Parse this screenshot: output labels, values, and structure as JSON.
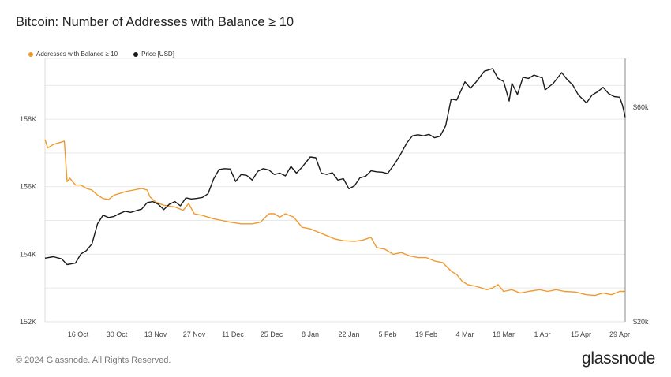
{
  "title": "Bitcoin: Number of Addresses with Balance ≥ 10",
  "footer": "© 2024 Glassnode. All Rights Reserved.",
  "brand": "glassnode",
  "colors": {
    "addresses": "#f09a2e",
    "price": "#1a1a1a",
    "grid": "#e9e9e9"
  },
  "chart_data": {
    "type": "line",
    "title": "Bitcoin: Number of Addresses with Balance ≥ 10",
    "legend_position": "top-left",
    "grid": true,
    "x_ticks": [
      "16 Oct",
      "30 Oct",
      "13 Nov",
      "27 Nov",
      "11 Dec",
      "25 Dec",
      "8 Jan",
      "22 Jan",
      "5 Feb",
      "19 Feb",
      "4 Mar",
      "18 Mar",
      "1 Apr",
      "15 Apr",
      "29 Apr"
    ],
    "x_range": [
      "2023-10-04",
      "2024-05-01"
    ],
    "y_left": {
      "ticks": [
        "152K",
        "154K",
        "156K",
        "158K"
      ],
      "range": [
        152000,
        159800
      ]
    },
    "y_right": {
      "scale": "log",
      "ticks": [
        "$20k",
        "$60k"
      ],
      "range": [
        20000,
        77000
      ]
    },
    "series": [
      {
        "name": "Addresses with Balance ≥ 10",
        "axis": "left",
        "color": "#f09a2e",
        "points": [
          [
            "2023-10-04",
            157400
          ],
          [
            "2023-10-05",
            157150
          ],
          [
            "2023-10-07",
            157250
          ],
          [
            "2023-10-09",
            157300
          ],
          [
            "2023-10-11",
            157350
          ],
          [
            "2023-10-12",
            156150
          ],
          [
            "2023-10-13",
            156250
          ],
          [
            "2023-10-15",
            156050
          ],
          [
            "2023-10-17",
            156050
          ],
          [
            "2023-10-19",
            155950
          ],
          [
            "2023-10-21",
            155900
          ],
          [
            "2023-10-23",
            155750
          ],
          [
            "2023-10-25",
            155650
          ],
          [
            "2023-10-27",
            155620
          ],
          [
            "2023-10-29",
            155750
          ],
          [
            "2023-10-31",
            155800
          ],
          [
            "2023-11-02",
            155850
          ],
          [
            "2023-11-05",
            155900
          ],
          [
            "2023-11-08",
            155950
          ],
          [
            "2023-11-10",
            155900
          ],
          [
            "2023-11-11",
            155700
          ],
          [
            "2023-11-13",
            155550
          ],
          [
            "2023-11-16",
            155450
          ],
          [
            "2023-11-20",
            155400
          ],
          [
            "2023-11-23",
            155300
          ],
          [
            "2023-11-25",
            155500
          ],
          [
            "2023-11-27",
            155200
          ],
          [
            "2023-11-30",
            155150
          ],
          [
            "2023-12-02",
            155100
          ],
          [
            "2023-12-04",
            155050
          ],
          [
            "2023-12-07",
            155000
          ],
          [
            "2023-12-10",
            154950
          ],
          [
            "2023-12-14",
            154900
          ],
          [
            "2023-12-18",
            154900
          ],
          [
            "2023-12-21",
            154950
          ],
          [
            "2023-12-24",
            155200
          ],
          [
            "2023-12-26",
            155200
          ],
          [
            "2023-12-28",
            155100
          ],
          [
            "2023-12-30",
            155200
          ],
          [
            "2024-01-02",
            155100
          ],
          [
            "2024-01-05",
            154800
          ],
          [
            "2024-01-08",
            154750
          ],
          [
            "2024-01-11",
            154650
          ],
          [
            "2024-01-14",
            154550
          ],
          [
            "2024-01-17",
            154450
          ],
          [
            "2024-01-20",
            154400
          ],
          [
            "2024-01-24",
            154380
          ],
          [
            "2024-01-27",
            154420
          ],
          [
            "2024-01-30",
            154500
          ],
          [
            "2024-02-01",
            154200
          ],
          [
            "2024-02-04",
            154150
          ],
          [
            "2024-02-07",
            154000
          ],
          [
            "2024-02-10",
            154050
          ],
          [
            "2024-02-13",
            153950
          ],
          [
            "2024-02-16",
            153900
          ],
          [
            "2024-02-19",
            153900
          ],
          [
            "2024-02-22",
            153800
          ],
          [
            "2024-02-25",
            153750
          ],
          [
            "2024-02-28",
            153500
          ],
          [
            "2024-03-01",
            153400
          ],
          [
            "2024-03-03",
            153200
          ],
          [
            "2024-03-05",
            153100
          ],
          [
            "2024-03-08",
            153050
          ],
          [
            "2024-03-10",
            153000
          ],
          [
            "2024-03-12",
            152950
          ],
          [
            "2024-03-14",
            153000
          ],
          [
            "2024-03-16",
            153100
          ],
          [
            "2024-03-18",
            152900
          ],
          [
            "2024-03-21",
            152950
          ],
          [
            "2024-03-24",
            152850
          ],
          [
            "2024-03-27",
            152900
          ],
          [
            "2024-03-31",
            152950
          ],
          [
            "2024-04-03",
            152900
          ],
          [
            "2024-04-06",
            152950
          ],
          [
            "2024-04-09",
            152900
          ],
          [
            "2024-04-13",
            152880
          ],
          [
            "2024-04-17",
            152800
          ],
          [
            "2024-04-20",
            152780
          ],
          [
            "2024-04-23",
            152850
          ],
          [
            "2024-04-26",
            152800
          ],
          [
            "2024-04-29",
            152900
          ],
          [
            "2024-05-01",
            152900
          ]
        ]
      },
      {
        "name": "Price [USD]",
        "axis": "right",
        "color": "#1a1a1a",
        "points": [
          [
            "2023-10-04",
            27700
          ],
          [
            "2023-10-07",
            27900
          ],
          [
            "2023-10-10",
            27600
          ],
          [
            "2023-10-12",
            26800
          ],
          [
            "2023-10-15",
            27000
          ],
          [
            "2023-10-17",
            28300
          ],
          [
            "2023-10-19",
            28800
          ],
          [
            "2023-10-21",
            29800
          ],
          [
            "2023-10-23",
            33000
          ],
          [
            "2023-10-25",
            34500
          ],
          [
            "2023-10-27",
            34100
          ],
          [
            "2023-10-29",
            34300
          ],
          [
            "2023-10-31",
            34800
          ],
          [
            "2023-11-02",
            35200
          ],
          [
            "2023-11-04",
            35000
          ],
          [
            "2023-11-06",
            35300
          ],
          [
            "2023-11-08",
            35600
          ],
          [
            "2023-11-10",
            36800
          ],
          [
            "2023-11-12",
            37000
          ],
          [
            "2023-11-14",
            36500
          ],
          [
            "2023-11-16",
            35500
          ],
          [
            "2023-11-18",
            36500
          ],
          [
            "2023-11-20",
            37000
          ],
          [
            "2023-11-22",
            36200
          ],
          [
            "2023-11-24",
            37700
          ],
          [
            "2023-11-26",
            37500
          ],
          [
            "2023-11-28",
            37600
          ],
          [
            "2023-11-30",
            37800
          ],
          [
            "2023-12-02",
            38500
          ],
          [
            "2023-12-04",
            41500
          ],
          [
            "2023-12-06",
            43600
          ],
          [
            "2023-12-08",
            43800
          ],
          [
            "2023-12-10",
            43700
          ],
          [
            "2023-12-12",
            41000
          ],
          [
            "2023-12-14",
            42500
          ],
          [
            "2023-12-16",
            42300
          ],
          [
            "2023-12-18",
            41300
          ],
          [
            "2023-12-20",
            43200
          ],
          [
            "2023-12-22",
            43800
          ],
          [
            "2023-12-24",
            43500
          ],
          [
            "2023-12-26",
            42500
          ],
          [
            "2023-12-28",
            42800
          ],
          [
            "2023-12-30",
            42200
          ],
          [
            "2024-01-01",
            44300
          ],
          [
            "2024-01-03",
            42800
          ],
          [
            "2024-01-05",
            44100
          ],
          [
            "2024-01-08",
            46500
          ],
          [
            "2024-01-10",
            46300
          ],
          [
            "2024-01-12",
            42800
          ],
          [
            "2024-01-14",
            42500
          ],
          [
            "2024-01-16",
            42900
          ],
          [
            "2024-01-18",
            41300
          ],
          [
            "2024-01-20",
            41600
          ],
          [
            "2024-01-22",
            39500
          ],
          [
            "2024-01-24",
            40100
          ],
          [
            "2024-01-26",
            41800
          ],
          [
            "2024-01-28",
            42100
          ],
          [
            "2024-01-30",
            43300
          ],
          [
            "2024-02-01",
            43100
          ],
          [
            "2024-02-03",
            43000
          ],
          [
            "2024-02-05",
            42700
          ],
          [
            "2024-02-08",
            45300
          ],
          [
            "2024-02-10",
            47500
          ],
          [
            "2024-02-12",
            50000
          ],
          [
            "2024-02-14",
            51800
          ],
          [
            "2024-02-16",
            52100
          ],
          [
            "2024-02-18",
            51800
          ],
          [
            "2024-02-20",
            52200
          ],
          [
            "2024-02-22",
            51300
          ],
          [
            "2024-02-24",
            51700
          ],
          [
            "2024-02-26",
            54500
          ],
          [
            "2024-02-28",
            62500
          ],
          [
            "2024-03-01",
            62200
          ],
          [
            "2024-03-04",
            68300
          ],
          [
            "2024-03-06",
            66100
          ],
          [
            "2024-03-08",
            68200
          ],
          [
            "2024-03-11",
            72100
          ],
          [
            "2024-03-14",
            73100
          ],
          [
            "2024-03-16",
            69500
          ],
          [
            "2024-03-18",
            68400
          ],
          [
            "2024-03-20",
            61900
          ],
          [
            "2024-03-21",
            67800
          ],
          [
            "2024-03-23",
            64000
          ],
          [
            "2024-03-25",
            69900
          ],
          [
            "2024-03-27",
            69500
          ],
          [
            "2024-03-29",
            70700
          ],
          [
            "2024-04-01",
            69700
          ],
          [
            "2024-04-02",
            65500
          ],
          [
            "2024-04-05",
            67800
          ],
          [
            "2024-04-08",
            71600
          ],
          [
            "2024-04-10",
            69100
          ],
          [
            "2024-04-12",
            67200
          ],
          [
            "2024-04-14",
            63900
          ],
          [
            "2024-04-17",
            61300
          ],
          [
            "2024-04-19",
            63800
          ],
          [
            "2024-04-21",
            64900
          ],
          [
            "2024-04-23",
            66400
          ],
          [
            "2024-04-25",
            64300
          ],
          [
            "2024-04-27",
            63300
          ],
          [
            "2024-04-29",
            63100
          ],
          [
            "2024-04-30",
            60600
          ],
          [
            "2024-05-01",
            57000
          ]
        ]
      }
    ]
  }
}
